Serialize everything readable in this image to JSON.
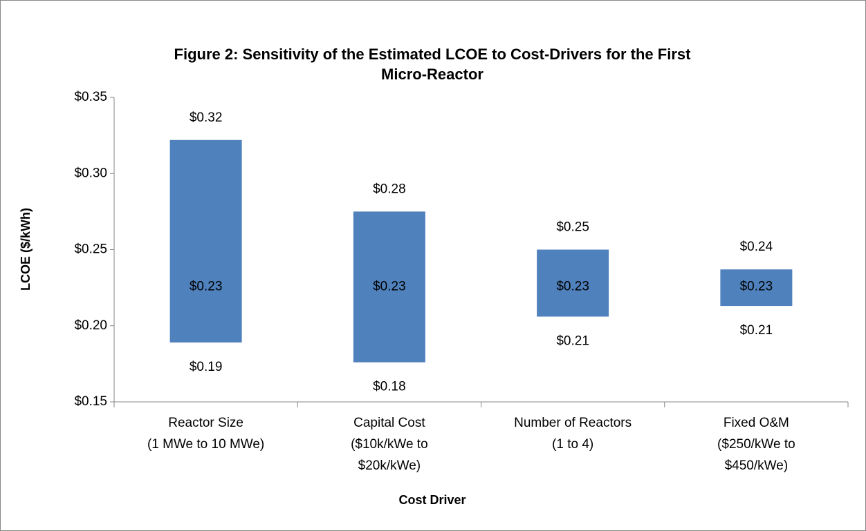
{
  "chart_data": {
    "type": "floating-bar",
    "title": [
      "Figure 2: Sensitivity of the Estimated LCOE to Cost-Drivers for the First",
      "Micro-Reactor"
    ],
    "x_label": "Cost Driver",
    "y_label": "LCOE ($/kWh)",
    "categories": [
      [
        "Reactor Size",
        "(1 MWe to 10 MWe)"
      ],
      [
        "Capital Cost",
        "($10k/kWe to",
        "$20k/kWe)"
      ],
      [
        "Number of Reactors",
        "(1 to 4)"
      ],
      [
        "Fixed O&M",
        "($250/kWe to",
        "$450/kWe)"
      ]
    ],
    "low": {
      "values": [
        0.189,
        0.176,
        0.206,
        0.213
      ],
      "value_labels": [
        "$0.19",
        "$0.18",
        "$0.21",
        "$0.21"
      ]
    },
    "high": {
      "values": [
        0.322,
        0.275,
        0.25,
        0.237
      ],
      "value_labels": [
        "$0.32",
        "$0.28",
        "$0.25",
        "$0.24"
      ]
    },
    "base": {
      "values": [
        0.23,
        0.23,
        0.23,
        0.23
      ],
      "value_labels": [
        "$0.23",
        "$0.23",
        "$0.23",
        "$0.23"
      ]
    },
    "color": "#4f81bd",
    "ylim": [
      0.15,
      0.35
    ],
    "yticks": [
      {
        "value": 0.15,
        "label": "$0.15"
      },
      {
        "value": 0.2,
        "label": "$0.20"
      },
      {
        "value": 0.25,
        "label": "$0.25"
      },
      {
        "value": 0.3,
        "label": "$0.30"
      },
      {
        "value": 0.35,
        "label": "$0.35"
      }
    ],
    "grid": false
  }
}
